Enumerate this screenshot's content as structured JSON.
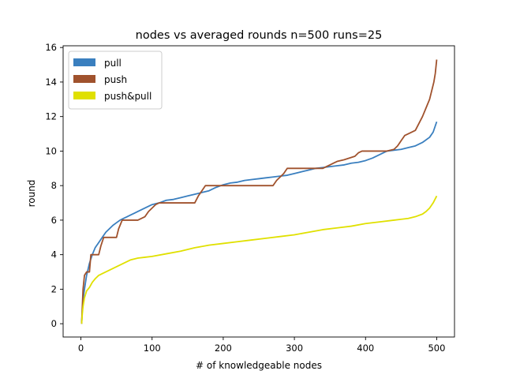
{
  "chart_data": {
    "type": "line",
    "title": "nodes vs averaged rounds n=500 runs=25",
    "xlabel": "# of knowledgeable nodes",
    "ylabel": "round",
    "xlim": [
      -25,
      525
    ],
    "ylim": [
      -0.77,
      16.1
    ],
    "xticks": [
      0,
      100,
      200,
      300,
      400,
      500
    ],
    "yticks": [
      0,
      2,
      4,
      6,
      8,
      10,
      12,
      14,
      16
    ],
    "grid": false,
    "legend_position": "top-left",
    "series": [
      {
        "name": "pull",
        "color": "#3a7fbf",
        "x": [
          1,
          2,
          3,
          5,
          8,
          12,
          16,
          20,
          25,
          30,
          35,
          40,
          45,
          50,
          55,
          60,
          65,
          70,
          75,
          80,
          90,
          100,
          110,
          120,
          130,
          140,
          150,
          160,
          170,
          180,
          190,
          200,
          210,
          220,
          230,
          240,
          250,
          260,
          270,
          280,
          290,
          300,
          310,
          320,
          330,
          340,
          350,
          360,
          370,
          380,
          390,
          400,
          410,
          420,
          430,
          440,
          450,
          460,
          470,
          480,
          490,
          495,
          500
        ],
        "y": [
          0.0,
          0.8,
          1.4,
          2.0,
          2.8,
          3.5,
          4.0,
          4.4,
          4.7,
          5.0,
          5.3,
          5.5,
          5.7,
          5.85,
          6.0,
          6.1,
          6.2,
          6.3,
          6.4,
          6.5,
          6.7,
          6.9,
          7.0,
          7.15,
          7.2,
          7.3,
          7.4,
          7.5,
          7.6,
          7.7,
          7.9,
          8.05,
          8.15,
          8.2,
          8.3,
          8.35,
          8.4,
          8.45,
          8.5,
          8.55,
          8.6,
          8.7,
          8.8,
          8.9,
          9.0,
          9.05,
          9.1,
          9.15,
          9.2,
          9.3,
          9.35,
          9.45,
          9.6,
          9.8,
          10.0,
          10.05,
          10.1,
          10.2,
          10.3,
          10.5,
          10.8,
          11.1,
          11.7
        ]
      },
      {
        "name": "push",
        "color": "#a0522d",
        "x": [
          1,
          2,
          3,
          5,
          8,
          12,
          14,
          20,
          25,
          28,
          32,
          35,
          50,
          53,
          55,
          58,
          60,
          65,
          70,
          80,
          90,
          95,
          100,
          105,
          110,
          115,
          130,
          150,
          160,
          165,
          170,
          175,
          180,
          195,
          200,
          220,
          240,
          260,
          270,
          275,
          280,
          285,
          290,
          295,
          300,
          320,
          340,
          345,
          350,
          355,
          360,
          370,
          385,
          390,
          395,
          400,
          420,
          430,
          440,
          445,
          450,
          455,
          460,
          470,
          475,
          480,
          485,
          490,
          493,
          496,
          498,
          500
        ],
        "y": [
          0.0,
          1.0,
          2.0,
          2.8,
          3.0,
          3.0,
          4.0,
          4.0,
          4.0,
          4.5,
          5.0,
          5.0,
          5.0,
          5.5,
          5.7,
          6.0,
          6.0,
          6.0,
          6.0,
          6.0,
          6.2,
          6.5,
          6.7,
          6.9,
          7.0,
          7.0,
          7.0,
          7.0,
          7.0,
          7.4,
          7.7,
          8.0,
          8.0,
          8.0,
          8.0,
          8.0,
          8.0,
          8.0,
          8.0,
          8.3,
          8.5,
          8.7,
          9.0,
          9.0,
          9.0,
          9.0,
          9.0,
          9.1,
          9.2,
          9.3,
          9.4,
          9.5,
          9.7,
          9.9,
          10.0,
          10.0,
          10.0,
          10.0,
          10.1,
          10.3,
          10.6,
          10.9,
          11.0,
          11.2,
          11.6,
          12.0,
          12.5,
          13.0,
          13.5,
          14.0,
          14.5,
          15.3
        ]
      },
      {
        "name": "push&pull",
        "color": "#e0e000",
        "x": [
          1,
          2,
          3,
          5,
          8,
          12,
          16,
          20,
          25,
          30,
          40,
          50,
          60,
          70,
          80,
          90,
          100,
          120,
          140,
          160,
          180,
          200,
          220,
          240,
          260,
          280,
          300,
          320,
          340,
          360,
          380,
          400,
          420,
          440,
          460,
          470,
          480,
          485,
          490,
          495,
          500
        ],
        "y": [
          0.0,
          0.6,
          1.0,
          1.5,
          1.9,
          2.1,
          2.4,
          2.6,
          2.8,
          2.9,
          3.1,
          3.3,
          3.5,
          3.7,
          3.8,
          3.85,
          3.9,
          4.05,
          4.2,
          4.4,
          4.55,
          4.65,
          4.75,
          4.85,
          4.95,
          5.05,
          5.15,
          5.3,
          5.45,
          5.55,
          5.65,
          5.8,
          5.9,
          6.0,
          6.1,
          6.2,
          6.35,
          6.5,
          6.7,
          7.0,
          7.4
        ]
      }
    ]
  }
}
